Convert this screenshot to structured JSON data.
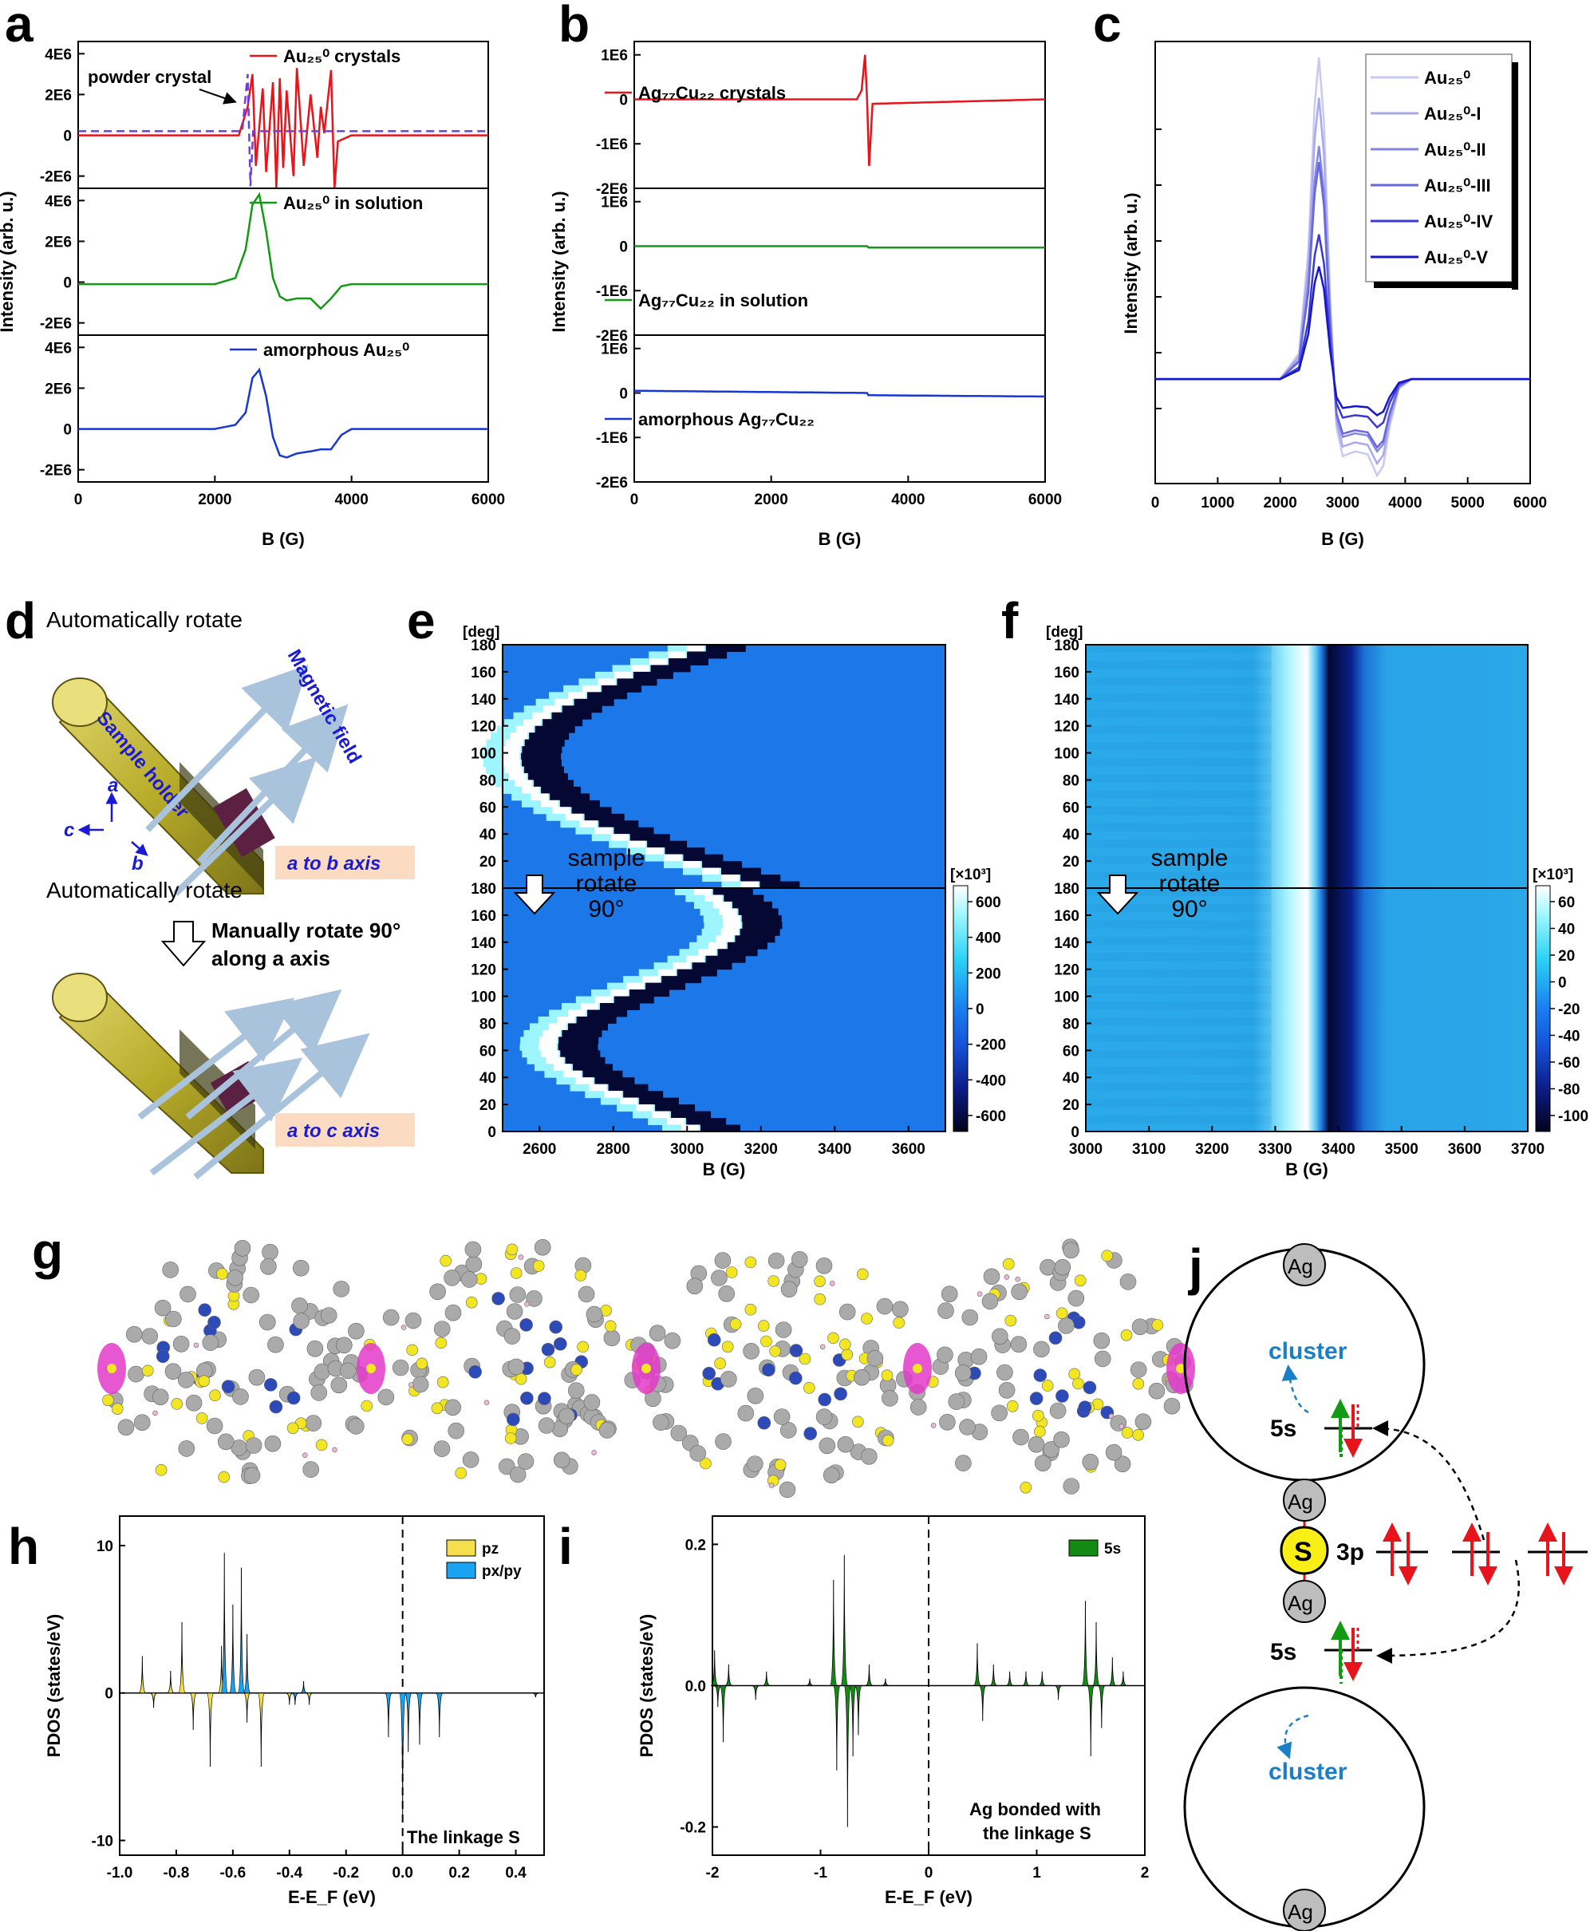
{
  "figure": {
    "panel_labels": [
      "a",
      "b",
      "c",
      "d",
      "e",
      "f",
      "g",
      "h",
      "i",
      "j"
    ],
    "colors": {
      "red": "#e8141b",
      "green": "#139a14",
      "blue": "#1737d6",
      "purple_dash": "#6f3de0",
      "yellow": "#f5df4c",
      "cyan": "#1aa3f0",
      "dkgreen": "#138a13"
    }
  },
  "panel_d": {
    "rotate_label_top": "Automatically rotate",
    "rotate_label_bottom": "Automatically rotate",
    "sample_holder": "Sample holder",
    "magnetic_field": "Magnetic field",
    "axis_a": "a",
    "axis_b": "b",
    "axis_c": "c",
    "box_top": "a to b axis",
    "box_bottom": "a to c axis",
    "manual_rotate_line1": "Manually rotate 90°",
    "manual_rotate_line2": "along a axis"
  },
  "panel_j": {
    "atom_ag": "Ag",
    "atom_s": "S",
    "label_cluster": "cluster",
    "label_5s": "5s",
    "label_3p": "3p"
  },
  "chart_data": [
    {
      "panel": "a",
      "type": "line",
      "xlabel": "B (G)",
      "ylabel": "Intensity (arb. u.)",
      "xlim": [
        0,
        6000
      ],
      "x_ticks": [
        "0",
        "2000",
        "4000",
        "6000"
      ],
      "subplots": [
        {
          "ylim": [
            -2600000.0,
            4600000.0
          ],
          "y_ticks": [
            "4E6",
            "2E6",
            "0",
            "-2E6"
          ],
          "series": [
            {
              "name": "Au₂₅⁰ crystals",
              "color": "#e8141b",
              "x": [
                0,
                2350,
                2480,
                2550,
                2600,
                2700,
                2750,
                2850,
                2900,
                2950,
                3000,
                3050,
                3150,
                3200,
                3300,
                3400,
                3500,
                3550,
                3600,
                3700,
                3750,
                3800,
                4000,
                6000
              ],
              "y": [
                0,
                0,
                1400000.0,
                3000000.0,
                -1500000.0,
                2300000.0,
                -1800000.0,
                2600000.0,
                -2600000.0,
                2800000.0,
                -1600000.0,
                2200000.0,
                -2000000.0,
                3300000.0,
                -1500000.0,
                2000000.0,
                -1100000.0,
                1400000.0,
                100000.0,
                3200000.0,
                -2600000.0,
                -300000.0,
                0,
                0
              ]
            },
            {
              "name": "powder crystal",
              "color": "#6f3de0",
              "dashed": true,
              "x": [
                0,
                2400,
                2480,
                2520,
                2560,
                6000
              ],
              "y": [
                200000.0,
                200000.0,
                3000000.0,
                -2500000.0,
                200000.0,
                200000.0
              ]
            }
          ],
          "annotations": [
            "Au₂₅⁰ crystals",
            "powder crystal"
          ]
        },
        {
          "ylim": [
            -2600000.0,
            4600000.0
          ],
          "y_ticks": [
            "4E6",
            "2E6",
            "0",
            "-2E6"
          ],
          "series": [
            {
              "name": "Au₂₅⁰ in solution",
              "color": "#139a14",
              "x": [
                0,
                2000,
                2300,
                2450,
                2550,
                2650,
                2750,
                2850,
                2950,
                3050,
                3200,
                3400,
                3550,
                3700,
                3850,
                4000,
                6000
              ],
              "y": [
                -100000.0,
                -100000.0,
                200000.0,
                1600000.0,
                3800000.0,
                4300000.0,
                2500000.0,
                200000.0,
                -700000.0,
                -900000.0,
                -800000.0,
                -800000.0,
                -1300000.0,
                -800000.0,
                -200000.0,
                -100000.0,
                -100000.0
              ]
            }
          ],
          "annotations": [
            "Au₂₅⁰ in solution"
          ]
        },
        {
          "ylim": [
            -2600000.0,
            4600000.0
          ],
          "y_ticks": [
            "4E6",
            "2E6",
            "0",
            "-2E6"
          ],
          "series": [
            {
              "name": "amorphous Au₂₅⁰",
              "color": "#1737d6",
              "x": [
                0,
                2000,
                2300,
                2450,
                2550,
                2650,
                2750,
                2850,
                2950,
                3050,
                3200,
                3400,
                3550,
                3700,
                3850,
                4000,
                6000
              ],
              "y": [
                0,
                0,
                200000.0,
                800000.0,
                2500000.0,
                2900000.0,
                1600000.0,
                -400000.0,
                -1300000.0,
                -1400000.0,
                -1200000.0,
                -1100000.0,
                -1000000.0,
                -1000000.0,
                -300000.0,
                0,
                0
              ]
            }
          ],
          "annotations": [
            "amorphous Au₂₅⁰"
          ]
        }
      ]
    },
    {
      "panel": "b",
      "type": "line",
      "xlabel": "B (G)",
      "ylabel": "Intensity (arb. u.)",
      "xlim": [
        0,
        6000
      ],
      "x_ticks": [
        "0",
        "2000",
        "4000",
        "6000"
      ],
      "subplots": [
        {
          "ylim": [
            -2000000.0,
            1300000.0
          ],
          "y_ticks": [
            "1E6",
            "0",
            "-1E6",
            "-2E6"
          ],
          "series": [
            {
              "name": "Ag₇₇Cu₂₂ crystals",
              "color": "#e8141b",
              "x": [
                0,
                3250,
                3320,
                3370,
                3400,
                3430,
                3480,
                6000
              ],
              "y": [
                0,
                0,
                200000.0,
                1000000.0,
                0,
                -1500000.0,
                -100000.0,
                0
              ]
            }
          ],
          "annotations": [
            "Ag₇₇Cu₂₂ crystals"
          ]
        },
        {
          "ylim": [
            -2000000.0,
            1300000.0
          ],
          "y_ticks": [
            "1E6",
            "0",
            "-1E6",
            "-2E6"
          ],
          "series": [
            {
              "name": "Ag₇₇Cu₂₂ in solution",
              "color": "#139a14",
              "x": [
                0,
                3400,
                3420,
                6000
              ],
              "y": [
                0,
                0,
                -30000.0,
                -30000.0
              ]
            }
          ],
          "annotations": [
            "Ag₇₇Cu₂₂ in solution"
          ]
        },
        {
          "ylim": [
            -2000000.0,
            1300000.0
          ],
          "y_ticks": [
            "1E6",
            "0",
            "-1E6",
            "-2E6"
          ],
          "series": [
            {
              "name": "amorphous Ag₇₇Cu₂₂",
              "color": "#1737d6",
              "x": [
                0,
                3400,
                3420,
                6000
              ],
              "y": [
                50000.0,
                0.0,
                -50000.0,
                -80000.0
              ]
            }
          ],
          "annotations": [
            "amorphous Ag₇₇Cu₂₂"
          ]
        }
      ]
    },
    {
      "panel": "c",
      "type": "line",
      "xlabel": "B (G)",
      "ylabel": "Intensity (arb. u.)",
      "xlim": [
        0,
        6000
      ],
      "x_ticks": [
        "0",
        "1000",
        "2000",
        "3000",
        "4000",
        "5000",
        "6000"
      ],
      "ylim": [
        -1.3,
        4.2
      ],
      "legend": "top-right",
      "series": [
        {
          "name": "Au₂₅⁰",
          "color": "#c9c9f2",
          "peak": 4.0,
          "trough": -1.2
        },
        {
          "name": "Au₂₅⁰-I",
          "color": "#a9a9ef",
          "peak": 3.5,
          "trough": -1.05
        },
        {
          "name": "Au₂₅⁰-II",
          "color": "#8585e6",
          "peak": 2.9,
          "trough": -0.9
        },
        {
          "name": "Au₂₅⁰-III",
          "color": "#6767de",
          "peak": 2.7,
          "trough": -0.85
        },
        {
          "name": "Au₂₅⁰-IV",
          "color": "#3a3ad2",
          "peak": 1.8,
          "trough": -0.6
        },
        {
          "name": "Au₂₅⁰-V",
          "color": "#1616cc",
          "peak": 1.4,
          "trough": -0.45
        }
      ]
    },
    {
      "panel": "e",
      "type": "heatmap",
      "xlabel": "B (G)",
      "x_ticks": [
        "2600",
        "2800",
        "3000",
        "3200",
        "3400",
        "3600"
      ],
      "xlim": [
        2500,
        3700
      ],
      "y_ticks_top": [
        "180",
        "160",
        "140",
        "120",
        "100",
        "80",
        "60",
        "40",
        "20"
      ],
      "y_ticks_bottom": [
        "180",
        "160",
        "140",
        "120",
        "100",
        "80",
        "60",
        "40",
        "20",
        "0"
      ],
      "y_unit": "[deg]",
      "colorbar_unit": "[×10³]",
      "colorbar_ticks": [
        "600",
        "400",
        "200",
        "0",
        "-200",
        "-400",
        "-600"
      ],
      "overlay": {
        "line1": "sample",
        "line2": "rotate",
        "line3": "90°"
      },
      "top_curve_center": 3150,
      "top_curve_amp": 600,
      "top_curve_min_angle": 97,
      "bottom_curve_center": 2900,
      "bottom_curve_amp": 250,
      "bottom_curve_min_angle": 64
    },
    {
      "panel": "f",
      "type": "heatmap",
      "xlabel": "B (G)",
      "x_ticks": [
        "3000",
        "3100",
        "3200",
        "3300",
        "3400",
        "3500",
        "3600",
        "3700"
      ],
      "xlim": [
        3000,
        3700
      ],
      "y_ticks_top": [
        "180",
        "160",
        "140",
        "120",
        "100",
        "80",
        "60",
        "40",
        "20"
      ],
      "y_ticks_bottom": [
        "180",
        "160",
        "140",
        "120",
        "100",
        "80",
        "60",
        "40",
        "20",
        "0"
      ],
      "y_unit": "[deg]",
      "colorbar_unit": "[×10³]",
      "colorbar_ticks": [
        "60",
        "40",
        "20",
        "0",
        "-20",
        "-40",
        "-60",
        "-80",
        "-100"
      ],
      "overlay": {
        "line1": "sample",
        "line2": "rotate",
        "line3": "90°"
      },
      "bright_line_B": 3350,
      "dark_line_B": 3410
    },
    {
      "panel": "h",
      "type": "area",
      "xlabel": "E-E_F (eV)",
      "ylabel": "PDOS (states/eV)",
      "xlim": [
        -1.0,
        0.5
      ],
      "ylim": [
        -11,
        12
      ],
      "x_ticks": [
        "-1.0",
        "-0.8",
        "-0.6",
        "-0.4",
        "-0.2",
        "0.0",
        "0.2",
        "0.4"
      ],
      "y_ticks": [
        "10",
        "0",
        "-10"
      ],
      "legend": "top-right",
      "annotation": "The linkage S",
      "series": [
        {
          "name": "pz",
          "color": "#f5df4c",
          "peaks": [
            [
              -0.92,
              2.5
            ],
            [
              -0.88,
              -1.0
            ],
            [
              -0.82,
              1.5
            ],
            [
              -0.78,
              4.8
            ],
            [
              -0.74,
              -2.5
            ],
            [
              -0.68,
              -5.0
            ],
            [
              -0.64,
              3.2
            ],
            [
              -0.57,
              0.9
            ],
            [
              -0.55,
              -2.0
            ],
            [
              -0.5,
              -5.0
            ],
            [
              -0.4,
              -0.8
            ],
            [
              -0.33,
              -0.8
            ]
          ]
        },
        {
          "name": "px/py",
          "color": "#1aa3f0",
          "peaks": [
            [
              -0.63,
              9.5
            ],
            [
              -0.6,
              6.0
            ],
            [
              -0.57,
              8.5
            ],
            [
              -0.55,
              4.0
            ],
            [
              -0.38,
              -0.8
            ],
            [
              -0.35,
              0.8
            ],
            [
              -0.05,
              -3.0
            ],
            [
              0.0,
              -8.5
            ],
            [
              0.02,
              -4.0
            ],
            [
              0.06,
              -3.5
            ],
            [
              0.13,
              -3.0
            ],
            [
              0.47,
              -0.3
            ]
          ]
        }
      ]
    },
    {
      "panel": "i",
      "type": "area",
      "xlabel": "E-E_F (eV)",
      "ylabel": "PDOS (states/eV)",
      "xlim": [
        -2,
        2
      ],
      "ylim": [
        -0.24,
        0.24
      ],
      "x_ticks": [
        "-2",
        "-1",
        "0",
        "1",
        "2"
      ],
      "y_ticks": [
        "0.2",
        "0.0",
        "-0.2"
      ],
      "legend": "top-right",
      "annotation_line1": "Ag bonded with",
      "annotation_line2": "the linkage S",
      "series": [
        {
          "name": "5s",
          "color": "#138a13",
          "peaks": [
            [
              -1.98,
              0.05
            ],
            [
              -1.95,
              -0.03
            ],
            [
              -1.9,
              -0.08
            ],
            [
              -1.85,
              0.03
            ],
            [
              -1.6,
              -0.02
            ],
            [
              -1.5,
              0.02
            ],
            [
              -1.1,
              0.01
            ],
            [
              -0.88,
              0.15
            ],
            [
              -0.85,
              -0.12
            ],
            [
              -0.78,
              0.185
            ],
            [
              -0.75,
              -0.2
            ],
            [
              -0.7,
              -0.1
            ],
            [
              -0.65,
              -0.07
            ],
            [
              -0.55,
              0.03
            ],
            [
              -0.4,
              0.01
            ],
            [
              0.45,
              0.06
            ],
            [
              0.5,
              -0.05
            ],
            [
              0.6,
              0.03
            ],
            [
              0.75,
              0.02
            ],
            [
              0.9,
              0.02
            ],
            [
              1.05,
              0.02
            ],
            [
              1.2,
              -0.02
            ],
            [
              1.45,
              0.12
            ],
            [
              1.5,
              -0.1
            ],
            [
              1.55,
              0.09
            ],
            [
              1.6,
              -0.06
            ],
            [
              1.7,
              0.04
            ],
            [
              1.8,
              0.02
            ]
          ]
        }
      ]
    }
  ]
}
